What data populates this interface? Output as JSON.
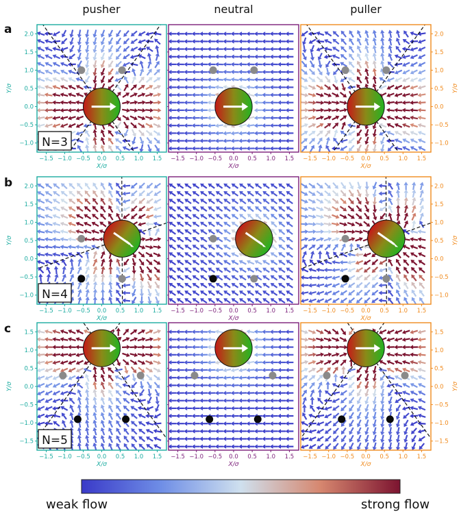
{
  "columns": [
    "pusher",
    "neutral",
    "puller"
  ],
  "rows": [
    {
      "tag": "a",
      "n_label": "N=3",
      "yticks": [
        "2.0",
        "1.5",
        "1.0",
        "0.5",
        "0.0",
        "−0.5",
        "−1.0"
      ]
    },
    {
      "tag": "b",
      "n_label": "N=4",
      "yticks": [
        "2.0",
        "1.5",
        "1.0",
        "0.5",
        "0.0",
        "−0.5",
        "−1.0"
      ]
    },
    {
      "tag": "c",
      "n_label": "N=5",
      "yticks": [
        "1.5",
        "1.0",
        "0.5",
        "0.0",
        "−0.5",
        "−1.0",
        "−1.5"
      ]
    }
  ],
  "xticks": [
    "−1.5",
    "−1.0",
    "−0.5",
    "0.0",
    "0.5",
    "1.0",
    "1.5"
  ],
  "axis_labels": {
    "x": "X/σ",
    "y": "Y/σ"
  },
  "colors": {
    "pusher": "#1aaba0",
    "neutral": "#7a1c78",
    "puller": "#f08a1c"
  },
  "colorbar": {
    "low_label": "weak flow",
    "high_label": "strong flow"
  }
}
